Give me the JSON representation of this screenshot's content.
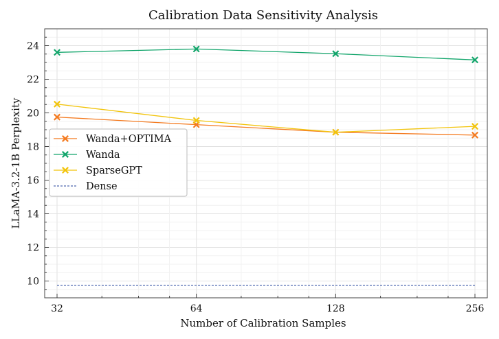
{
  "chart_data": {
    "type": "line",
    "title": "Calibration Data Sensitivity Analysis",
    "xlabel": "Number of Calibration Samples",
    "ylabel": "LLaMA-3.2-1B Perplexity",
    "x_scale": "log2",
    "x": [
      32,
      64,
      128,
      256
    ],
    "xticks": [
      "32",
      "64",
      "128",
      "256"
    ],
    "ylim": [
      9,
      25
    ],
    "yticks": [
      10,
      12,
      14,
      16,
      18,
      20,
      22,
      24
    ],
    "grid": true,
    "legend_position": "center-left",
    "series": [
      {
        "name": "Wanda+OPTIMA",
        "color": "#f47a1f",
        "marker": "x",
        "style": "solid",
        "values": [
          19.75,
          19.3,
          18.85,
          18.68
        ]
      },
      {
        "name": "Wanda",
        "color": "#12a56b",
        "marker": "x",
        "style": "solid",
        "values": [
          23.6,
          23.8,
          23.52,
          23.15
        ]
      },
      {
        "name": "SparseGPT",
        "color": "#f2c40c",
        "marker": "x",
        "style": "solid",
        "values": [
          20.52,
          19.55,
          18.85,
          19.2
        ]
      },
      {
        "name": "Dense",
        "color": "#1f3f99",
        "marker": "none",
        "style": "dashed",
        "values": [
          9.75,
          9.75,
          9.75,
          9.75
        ]
      }
    ]
  }
}
